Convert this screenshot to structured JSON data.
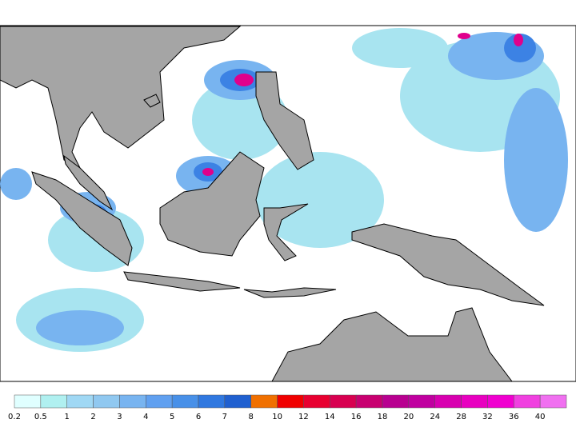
{
  "colorbar": {
    "labels": [
      0.2,
      0.5,
      1,
      2,
      3,
      4,
      5,
      6,
      7,
      8,
      10,
      12,
      14,
      16,
      18,
      20,
      24,
      28,
      32,
      36,
      40
    ],
    "colors": [
      "#e0ffff",
      "#b0f0f0",
      "#a0d8f4",
      "#90c8f0",
      "#78b4f0",
      "#60a0f0",
      "#4890e8",
      "#3078e0",
      "#2060d0",
      "#f07000",
      "#f00000",
      "#e80030",
      "#d80050",
      "#c80070",
      "#b80090",
      "#c000a0",
      "#d800b0",
      "#e800c0",
      "#f000d0",
      "#f040e0",
      "#f070f0"
    ]
  }
}
